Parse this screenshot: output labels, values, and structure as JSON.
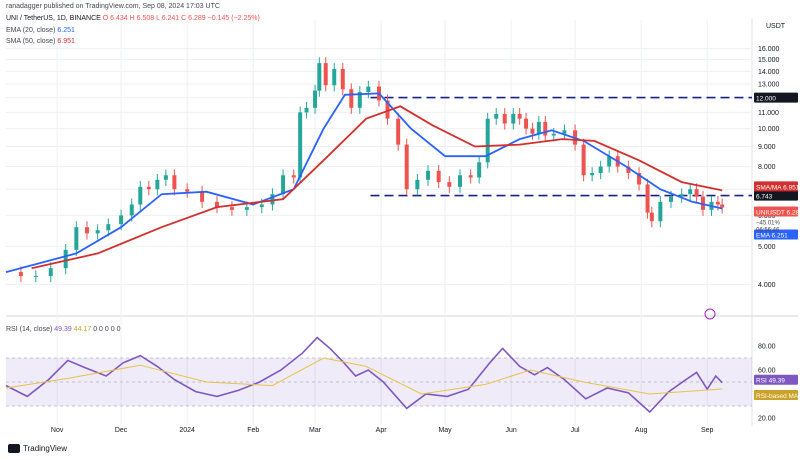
{
  "header": {
    "publisher": "ranadagger published on TradingView.com, Sep 08, 2024 17:03 UTC",
    "symbol_line": "UNI / TetherUS, 1D, BINANCE",
    "ohlc_o": "O 6.434",
    "ohlc_h": "H 6.508",
    "ohlc_l": "L 6.241",
    "ohlc_c": "C 6.289",
    "ohlc_chg": "−0.145 (−2.25%)",
    "ema_label": "EMA (20, close)",
    "ema_value": "6.251",
    "sma_label": "SMA (50, close)",
    "sma_value": "6.951",
    "rsi_label": "RSI (14, close)",
    "rsi_value": "49.39",
    "rsi_ma_value": "44.17",
    "rsi_extra": "0 0 0 0 0"
  },
  "branding": {
    "logo_text": "TradingView"
  },
  "colors": {
    "up": "#26a69a",
    "down": "#ef5350",
    "ema": "#2962ff",
    "sma": "#d32f2f",
    "rsi": "#7e57c2",
    "rsi_ma": "#e8c34a",
    "level": "#1a237e",
    "grid": "#eef0f4",
    "axis_text": "#131722",
    "rsi_band": "rgba(126,87,194,0.12)"
  },
  "chart_data": [
    {
      "type": "candlestick",
      "title": "UNI / TetherUS, 1D, BINANCE",
      "ylabel": "USDT",
      "y_scale": "log",
      "ylim": [
        3.4,
        18.5
      ],
      "y_ticks": [
        "16.000",
        "15.000",
        "14.000",
        "13.000",
        "12.000",
        "11.000",
        "10.000",
        "9.000",
        "8.000",
        "7.000",
        "6.000",
        "5.000",
        "4.000"
      ],
      "x_ticks": [
        "Nov",
        "Dec",
        "2024",
        "Feb",
        "Mar",
        "Apr",
        "May",
        "Jun",
        "Jul",
        "Aug",
        "Sep"
      ],
      "x_tick_dates": [
        "2023-11-01",
        "2023-12-01",
        "2024-01-01",
        "2024-02-01",
        "2024-03-01",
        "2024-04-01",
        "2024-05-01",
        "2024-06-01",
        "2024-07-01",
        "2024-08-01",
        "2024-09-01"
      ],
      "xlim": [
        "2023-10-08",
        "2024-09-22"
      ],
      "close_series": [
        [
          "2023-10-08",
          4.3
        ],
        [
          "2023-10-15",
          4.2
        ],
        [
          "2023-10-22",
          4.2
        ],
        [
          "2023-10-29",
          4.4
        ],
        [
          "2023-11-05",
          4.9
        ],
        [
          "2023-11-10",
          5.6
        ],
        [
          "2023-11-15",
          5.4
        ],
        [
          "2023-11-20",
          5.5
        ],
        [
          "2023-11-25",
          5.7
        ],
        [
          "2023-12-01",
          6.0
        ],
        [
          "2023-12-06",
          6.4
        ],
        [
          "2023-12-10",
          7.1
        ],
        [
          "2023-12-14",
          7.0
        ],
        [
          "2023-12-18",
          7.4
        ],
        [
          "2023-12-22",
          7.6
        ],
        [
          "2023-12-26",
          7.0
        ],
        [
          "2024-01-01",
          6.9
        ],
        [
          "2024-01-08",
          6.5
        ],
        [
          "2024-01-15",
          6.3
        ],
        [
          "2024-01-22",
          6.2
        ],
        [
          "2024-01-29",
          6.3
        ],
        [
          "2024-02-05",
          6.4
        ],
        [
          "2024-02-10",
          6.8
        ],
        [
          "2024-02-15",
          7.6
        ],
        [
          "2024-02-20",
          7.5
        ],
        [
          "2024-02-23",
          11.0
        ],
        [
          "2024-02-26",
          11.3
        ],
        [
          "2024-03-01",
          12.5
        ],
        [
          "2024-03-03",
          14.7
        ],
        [
          "2024-03-06",
          12.9
        ],
        [
          "2024-03-10",
          14.2
        ],
        [
          "2024-03-14",
          12.6
        ],
        [
          "2024-03-18",
          11.3
        ],
        [
          "2024-03-22",
          12.4
        ],
        [
          "2024-03-26",
          12.8
        ],
        [
          "2024-03-31",
          11.8
        ],
        [
          "2024-04-04",
          10.6
        ],
        [
          "2024-04-09",
          9.1
        ],
        [
          "2024-04-13",
          7.0
        ],
        [
          "2024-04-18",
          7.4
        ],
        [
          "2024-04-23",
          7.8
        ],
        [
          "2024-04-28",
          7.3
        ],
        [
          "2024-05-03",
          7.1
        ],
        [
          "2024-05-08",
          7.6
        ],
        [
          "2024-05-13",
          7.5
        ],
        [
          "2024-05-17",
          8.2
        ],
        [
          "2024-05-21",
          10.6
        ],
        [
          "2024-05-25",
          10.9
        ],
        [
          "2024-05-29",
          10.3
        ],
        [
          "2024-06-02",
          10.9
        ],
        [
          "2024-06-05",
          10.6
        ],
        [
          "2024-06-08",
          10.0
        ],
        [
          "2024-06-11",
          9.7
        ],
        [
          "2024-06-14",
          10.4
        ],
        [
          "2024-06-17",
          9.6
        ],
        [
          "2024-06-21",
          9.7
        ],
        [
          "2024-06-26",
          9.9
        ],
        [
          "2024-07-01",
          9.1
        ],
        [
          "2024-07-05",
          7.6
        ],
        [
          "2024-07-09",
          7.7
        ],
        [
          "2024-07-13",
          8.0
        ],
        [
          "2024-07-17",
          8.5
        ],
        [
          "2024-07-21",
          8.0
        ],
        [
          "2024-07-26",
          7.7
        ],
        [
          "2024-07-31",
          7.2
        ],
        [
          "2024-08-04",
          6.1
        ],
        [
          "2024-08-06",
          5.8
        ],
        [
          "2024-08-10",
          6.5
        ],
        [
          "2024-08-15",
          6.7
        ],
        [
          "2024-08-20",
          6.8
        ],
        [
          "2024-08-24",
          7.0
        ],
        [
          "2024-08-27",
          6.7
        ],
        [
          "2024-08-30",
          6.2
        ],
        [
          "2024-09-03",
          6.5
        ],
        [
          "2024-09-06",
          6.4
        ],
        [
          "2024-09-08",
          6.289
        ]
      ],
      "series": [
        {
          "name": "EMA (20, close)",
          "values": [
            [
              "2023-10-08",
              4.3
            ],
            [
              "2023-11-10",
              4.8
            ],
            [
              "2023-12-01",
              5.6
            ],
            [
              "2023-12-20",
              6.8
            ],
            [
              "2024-01-10",
              6.9
            ],
            [
              "2024-02-01",
              6.4
            ],
            [
              "2024-02-20",
              7.0
            ],
            [
              "2024-03-05",
              10.0
            ],
            [
              "2024-03-15",
              12.2
            ],
            [
              "2024-03-31",
              12.3
            ],
            [
              "2024-04-15",
              10.0
            ],
            [
              "2024-05-01",
              8.5
            ],
            [
              "2024-05-20",
              8.5
            ],
            [
              "2024-06-05",
              9.4
            ],
            [
              "2024-06-20",
              9.9
            ],
            [
              "2024-07-05",
              9.3
            ],
            [
              "2024-07-25",
              8.0
            ],
            [
              "2024-08-10",
              7.0
            ],
            [
              "2024-08-25",
              6.5
            ],
            [
              "2024-09-08",
              6.251
            ]
          ]
        },
        {
          "name": "SMA (50, close)",
          "values": [
            [
              "2023-10-20",
              4.4
            ],
            [
              "2023-11-20",
              4.8
            ],
            [
              "2023-12-20",
              5.6
            ],
            [
              "2024-01-15",
              6.3
            ],
            [
              "2024-02-15",
              6.6
            ],
            [
              "2024-03-05",
              8.3
            ],
            [
              "2024-03-25",
              10.6
            ],
            [
              "2024-04-10",
              11.4
            ],
            [
              "2024-04-25",
              10.2
            ],
            [
              "2024-05-15",
              9.0
            ],
            [
              "2024-06-05",
              9.1
            ],
            [
              "2024-06-25",
              9.4
            ],
            [
              "2024-07-10",
              9.3
            ],
            [
              "2024-07-31",
              8.3
            ],
            [
              "2024-08-20",
              7.3
            ],
            [
              "2024-09-08",
              6.951
            ]
          ]
        }
      ],
      "levels": [
        {
          "label": "12.000",
          "value": 12.0,
          "style": "dashed",
          "from": "2024-03-27"
        },
        {
          "label": "6.743",
          "value": 6.743,
          "style": "dashed",
          "from": "2024-03-27"
        }
      ],
      "price_tags": [
        {
          "label": "SMA/MA",
          "value": "6.951",
          "color": "#d32f2f"
        },
        {
          "label": "UNIUSDT",
          "value": "6.289",
          "color": "#ef5350"
        },
        {
          "label": "EMA",
          "value": "6.251",
          "color": "#2962ff"
        }
      ],
      "countdown": [
        "−45.01%",
        "06:56:46"
      ],
      "grid": true
    },
    {
      "type": "line",
      "title": "RSI (14, close)",
      "ylim": [
        15,
        90
      ],
      "y_ticks": [
        "80.00",
        "60.00",
        "40.00",
        "20.00"
      ],
      "band": [
        30,
        70
      ],
      "series": [
        {
          "name": "RSI",
          "values": [
            [
              "2023-10-08",
              47
            ],
            [
              "2023-10-18",
              38
            ],
            [
              "2023-10-28",
              52
            ],
            [
              "2023-11-06",
              68
            ],
            [
              "2023-11-14",
              62
            ],
            [
              "2023-11-24",
              55
            ],
            [
              "2023-12-02",
              66
            ],
            [
              "2023-12-10",
              72
            ],
            [
              "2023-12-18",
              63
            ],
            [
              "2023-12-26",
              52
            ],
            [
              "2024-01-05",
              42
            ],
            [
              "2024-01-15",
              38
            ],
            [
              "2024-01-25",
              43
            ],
            [
              "2024-02-04",
              50
            ],
            [
              "2024-02-14",
              60
            ],
            [
              "2024-02-24",
              74
            ],
            [
              "2024-03-02",
              87
            ],
            [
              "2024-03-08",
              78
            ],
            [
              "2024-03-14",
              67
            ],
            [
              "2024-03-20",
              55
            ],
            [
              "2024-03-26",
              60
            ],
            [
              "2024-04-02",
              50
            ],
            [
              "2024-04-13",
              28
            ],
            [
              "2024-04-22",
              40
            ],
            [
              "2024-05-02",
              38
            ],
            [
              "2024-05-12",
              44
            ],
            [
              "2024-05-22",
              66
            ],
            [
              "2024-05-28",
              78
            ],
            [
              "2024-06-05",
              63
            ],
            [
              "2024-06-12",
              56
            ],
            [
              "2024-06-18",
              62
            ],
            [
              "2024-06-26",
              52
            ],
            [
              "2024-07-06",
              36
            ],
            [
              "2024-07-16",
              45
            ],
            [
              "2024-07-26",
              41
            ],
            [
              "2024-08-05",
              25
            ],
            [
              "2024-08-14",
              42
            ],
            [
              "2024-08-22",
              52
            ],
            [
              "2024-08-27",
              58
            ],
            [
              "2024-09-01",
              44
            ],
            [
              "2024-09-05",
              55
            ],
            [
              "2024-09-08",
              49.39
            ]
          ]
        },
        {
          "name": "RSI-based MA",
          "values": [
            [
              "2023-10-08",
              45
            ],
            [
              "2023-11-06",
              53
            ],
            [
              "2023-12-10",
              64
            ],
            [
              "2024-01-10",
              50
            ],
            [
              "2024-02-10",
              47
            ],
            [
              "2024-03-05",
              70
            ],
            [
              "2024-03-25",
              63
            ],
            [
              "2024-04-20",
              40
            ],
            [
              "2024-05-20",
              48
            ],
            [
              "2024-06-10",
              60
            ],
            [
              "2024-07-05",
              50
            ],
            [
              "2024-08-05",
              40
            ],
            [
              "2024-09-08",
              44.17
            ]
          ]
        }
      ],
      "price_tags": [
        {
          "label": "RSI",
          "value": "49.39",
          "color": "#7e57c2"
        },
        {
          "label": "RSI-based MA",
          "value": "44.17",
          "color": "#e8c34a"
        }
      ],
      "grid": true
    }
  ]
}
